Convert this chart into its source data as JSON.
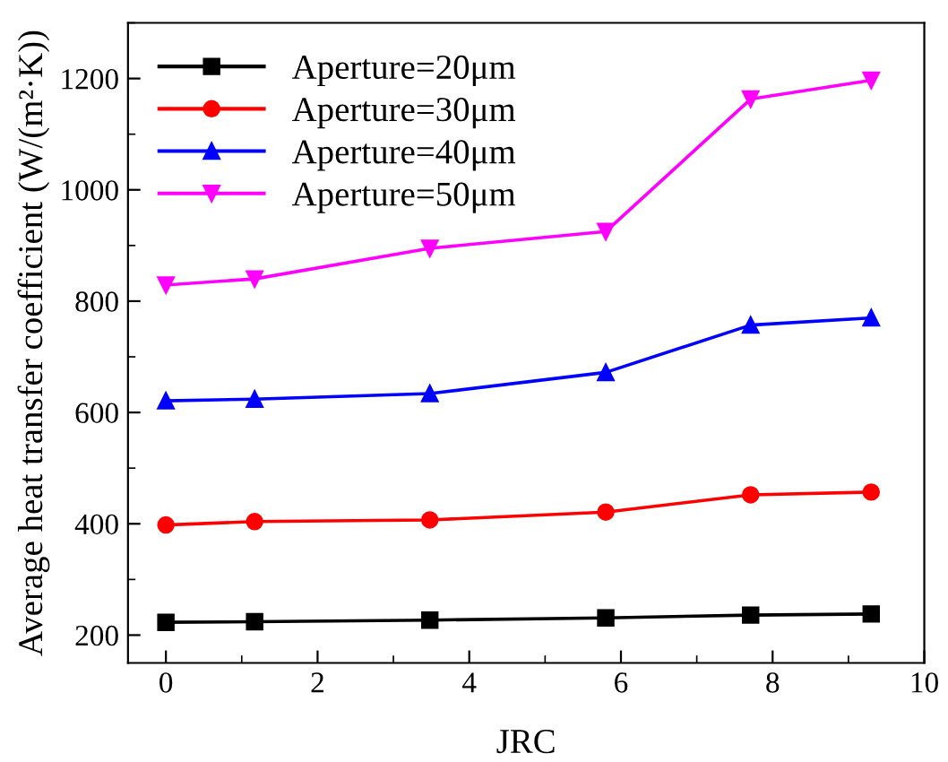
{
  "chart_data": {
    "type": "line",
    "xlabel": "JRC",
    "ylabel": "Average heat transfer coefficient (W/(m²·K))",
    "x": [
      0,
      1.17,
      3.48,
      5.8,
      7.71,
      9.3
    ],
    "series": [
      {
        "name": "Aperture=20μm",
        "color": "#000000",
        "marker": "square",
        "values": [
          223,
          224,
          227,
          231,
          236,
          238
        ]
      },
      {
        "name": "Aperture=30μm",
        "color": "#ff0000",
        "marker": "circle",
        "values": [
          398,
          404,
          407,
          421,
          452,
          457
        ]
      },
      {
        "name": "Aperture=40μm",
        "color": "#0000ff",
        "marker": "triangle",
        "values": [
          621,
          624,
          634,
          672,
          757,
          770
        ]
      },
      {
        "name": "Aperture=50μm",
        "color": "#ff00ff",
        "marker": "triangle_down",
        "values": [
          829,
          840,
          895,
          925,
          1163,
          1197
        ]
      }
    ],
    "xlim": [
      -0.5,
      10
    ],
    "ylim": [
      150,
      1300
    ],
    "xticks": [
      0,
      2,
      4,
      6,
      8,
      10
    ],
    "yticks": [
      200,
      400,
      600,
      800,
      1000,
      1200
    ],
    "grid": false,
    "legend": "top left",
    "line_style": "solid"
  }
}
